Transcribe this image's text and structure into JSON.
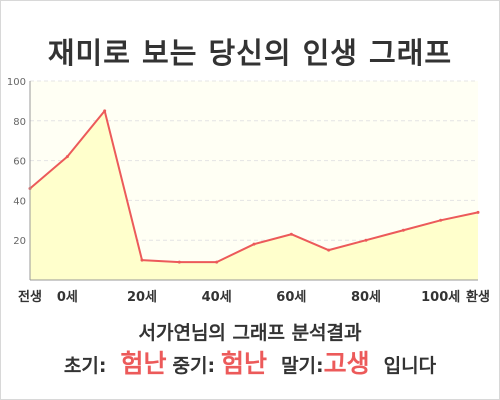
{
  "title": "재미로 보는 당신의 인생 그래프",
  "subtitle": "서가연님의 그래프 분석결과",
  "result": {
    "early_label": "초기:",
    "early_value": "험난",
    "middle_label": "중기:",
    "middle_value": "험난",
    "late_label": "말기:",
    "late_value": "고생",
    "suffix": "입니다"
  },
  "colors": {
    "line": "#ec5a5a",
    "fill": "#ffffcc",
    "highlight": "#ec5a5a"
  },
  "chart_data": {
    "type": "area",
    "title": "",
    "xlabel": "",
    "ylabel": "",
    "x": [
      -10,
      0,
      10,
      20,
      30,
      40,
      50,
      60,
      70,
      80,
      90,
      100,
      110
    ],
    "series": [
      {
        "values": [
          46,
          62,
          85,
          10,
          9,
          9,
          18,
          23,
          15,
          20,
          25,
          30,
          34
        ]
      }
    ],
    "xticks": [
      {
        "x": -10,
        "label": "전생"
      },
      {
        "x": 0,
        "label": "0세"
      },
      {
        "x": 20,
        "label": "20세"
      },
      {
        "x": 40,
        "label": "40세"
      },
      {
        "x": 60,
        "label": "60세"
      },
      {
        "x": 80,
        "label": "80세"
      },
      {
        "x": 100,
        "label": "100세"
      },
      {
        "x": 110,
        "label": "환생"
      }
    ],
    "yticks": [
      20,
      40,
      60,
      80,
      100
    ],
    "ylim": [
      0,
      100
    ],
    "xlim": [
      -10,
      110
    ],
    "grid": true,
    "legend": "none"
  }
}
